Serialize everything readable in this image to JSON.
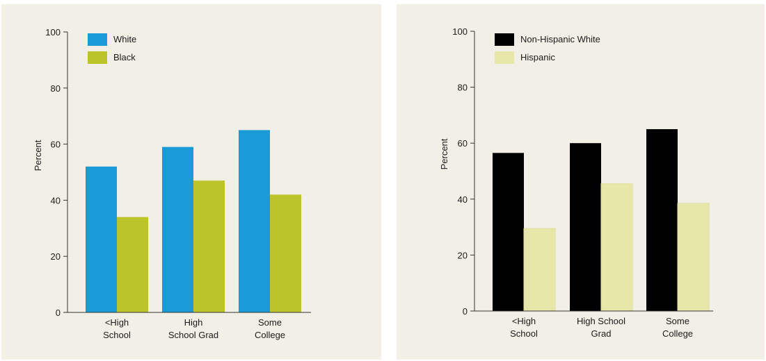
{
  "chart_data": [
    {
      "type": "bar",
      "categories": [
        [
          "<High",
          "School"
        ],
        [
          "High",
          "School Grad"
        ],
        [
          "Some",
          "College"
        ]
      ],
      "series": [
        {
          "name": "White",
          "values": [
            52,
            59,
            65
          ],
          "color": "#1a9bd7"
        },
        {
          "name": "Black",
          "values": [
            34,
            47,
            42
          ],
          "color": "#bcc42b"
        }
      ],
      "ylabel": "Percent",
      "ylim": [
        0,
        100
      ],
      "yticks": [
        0,
        20,
        40,
        60,
        80,
        100
      ],
      "grid": false,
      "legend_position": "top-left"
    },
    {
      "type": "bar",
      "categories": [
        [
          "<High",
          "School"
        ],
        [
          "High School",
          "Grad"
        ],
        [
          "Some",
          "College"
        ]
      ],
      "series": [
        {
          "name": "Non-Hispanic White",
          "values": [
            56.5,
            60,
            65
          ],
          "color": "#000000"
        },
        {
          "name": "Hispanic",
          "values": [
            29.5,
            45.5,
            38.5
          ],
          "color": "#e6e7a8"
        }
      ],
      "ylabel": "Percent",
      "ylim": [
        0,
        100
      ],
      "yticks": [
        0,
        20,
        40,
        60,
        80,
        100
      ],
      "grid": false,
      "legend_position": "top-left"
    }
  ]
}
